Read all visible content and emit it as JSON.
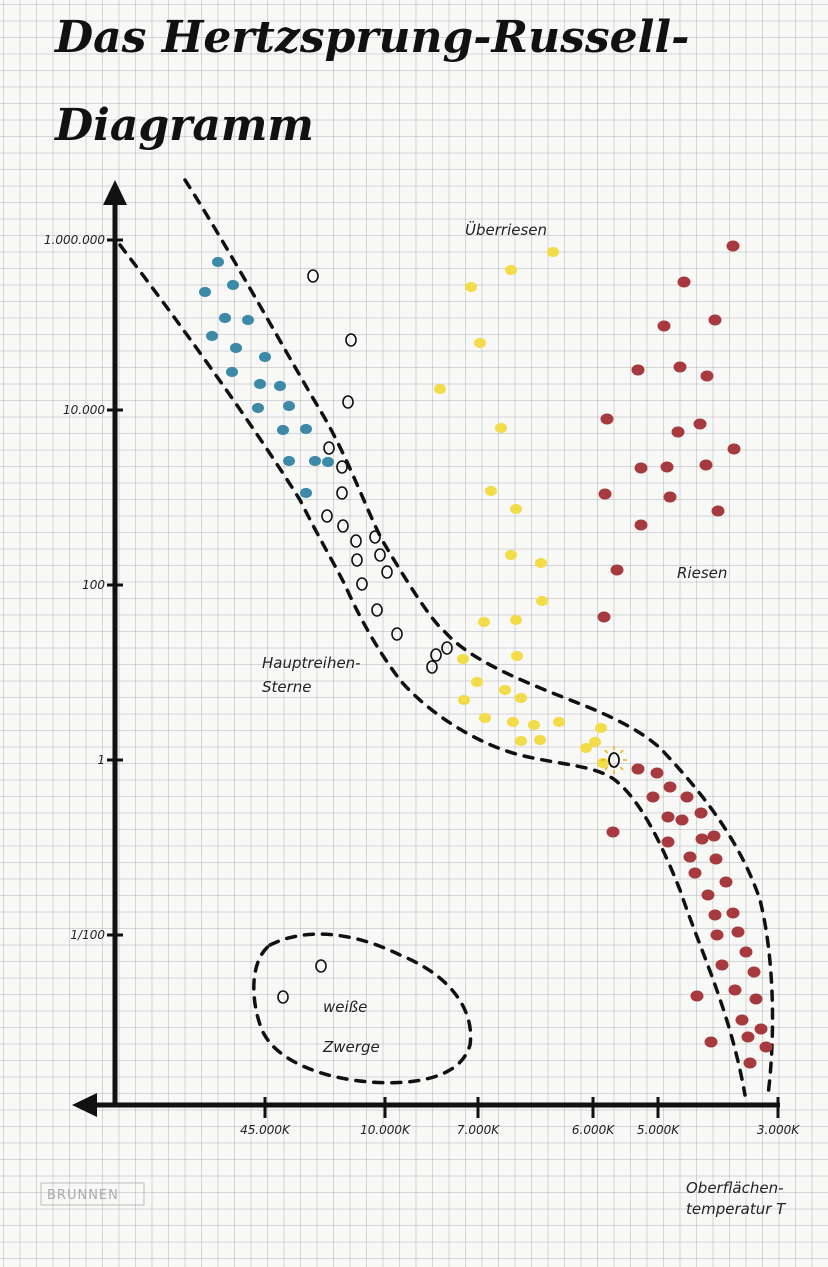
{
  "title": [
    "Das Hertzsprung-Russell-",
    "Diagramm"
  ],
  "y_axis": {
    "ticks": [
      "1.000.000",
      "10.000",
      "100",
      "1",
      "1/100"
    ]
  },
  "x_axis": {
    "ticks": [
      "45.000K",
      "10.000K",
      "7.000K",
      "6.000K",
      "5.000K",
      "3.000K"
    ],
    "label": [
      "Oberflächen-",
      "temperatur T"
    ]
  },
  "regions": {
    "supergiants": "Überriesen",
    "giants": "Riesen",
    "main_sequence": [
      "Hauptreihen-",
      "Sterne"
    ],
    "white_dwarfs": [
      "weiße",
      "Zwerge"
    ]
  },
  "brand": "BRUNNEN"
}
